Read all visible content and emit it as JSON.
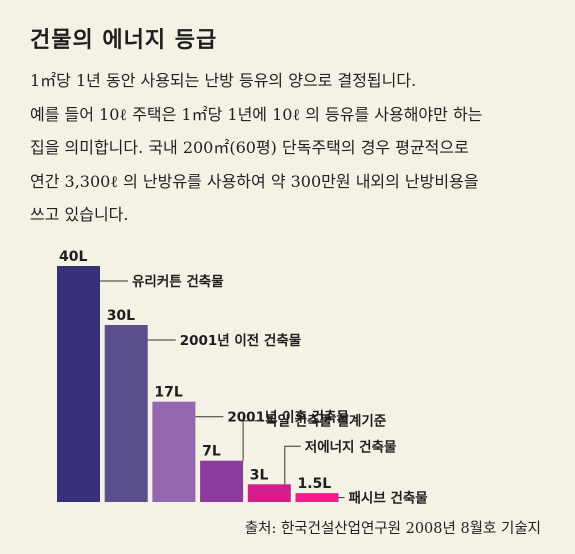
{
  "title": "건물의 에너지 등급",
  "paragraph_lines": [
    "1㎡당 1년 동안 사용되는 난방 등유의 양으로 결정됩니다.",
    "예를 들어 10ℓ 주택은 1㎡당 1년에 10ℓ 의 등유를 사용해야만 하는",
    "집을 의미합니다. 국내 200㎡(60평) 단독주택의 경우 평균적으로",
    "연간 3,300ℓ 의 난방유를 사용하여 약 300만원 내외의 난방비용을",
    "쓰고 있습니다."
  ],
  "chart_data": {
    "type": "bar",
    "categories": [
      "유리커튼 건축물",
      "2001년 이전 건축물",
      "2001년 이후 건축물",
      "독일 건축물 설계기준",
      "저에너지 건축물",
      "패시브 건축물"
    ],
    "values": [
      40,
      30,
      17,
      7,
      3,
      1.5
    ],
    "value_labels": [
      "40L",
      "30L",
      "17L",
      "7L",
      "3L",
      "1.5L"
    ],
    "colors": [
      "#36307a",
      "#5a4f8d",
      "#9467b3",
      "#8a3b9b",
      "#d21d8b",
      "#ef1d8c"
    ],
    "ylim": [
      0,
      40
    ],
    "grid": false,
    "legend": "none"
  },
  "source": "출처: 한국건설산업연구원 2008년 8월호 기술지"
}
